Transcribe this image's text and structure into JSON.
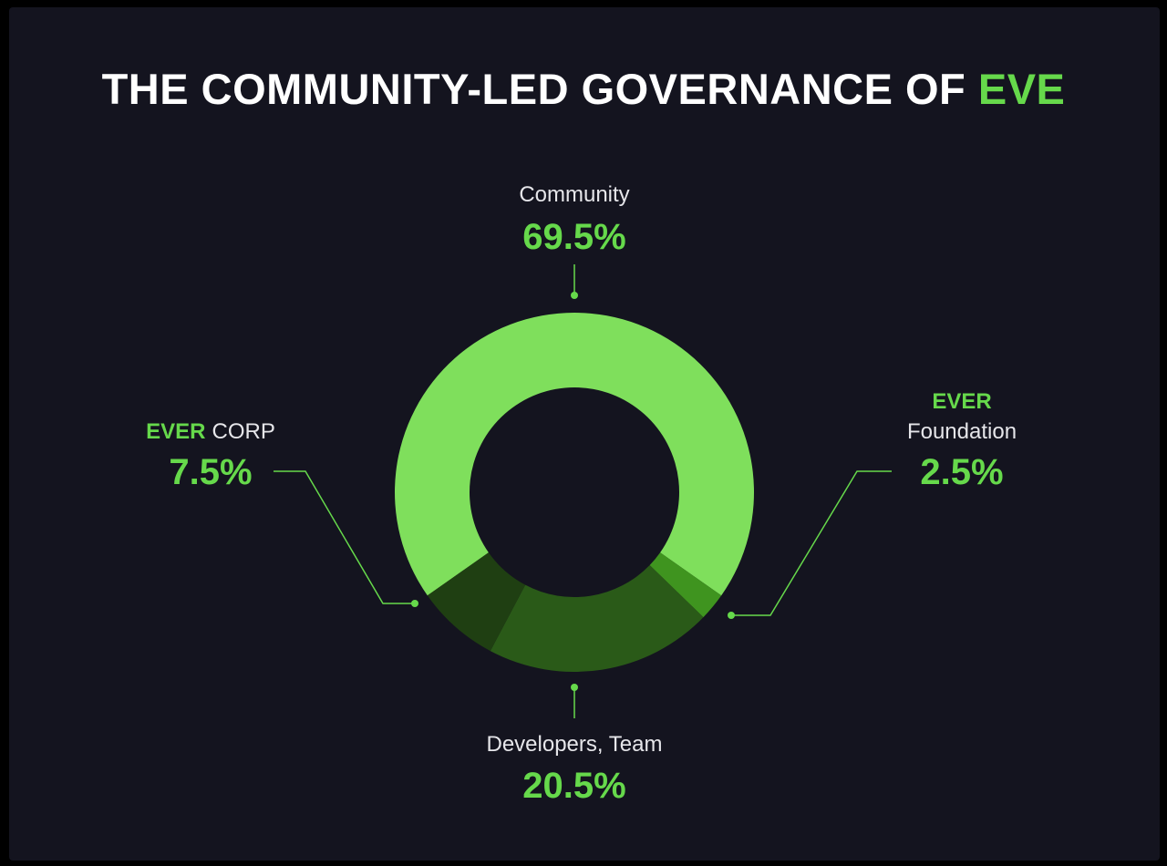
{
  "chart_data": {
    "type": "pie",
    "title": "THE COMMUNITY-LED GOVERNANCE OF",
    "title_accent": "EVE",
    "categories": [
      "Community",
      "EVER Foundation",
      "Developers, Team",
      "EVER CORP"
    ],
    "values": [
      69.5,
      2.5,
      20.5,
      7.5
    ],
    "colors": [
      "#7fdf5c",
      "#3f941f",
      "#2a5a18",
      "#1f3f12"
    ],
    "value_labels": [
      "69.5%",
      "2.5%",
      "20.5%",
      "7.5%"
    ],
    "labels": {
      "community": {
        "text": "Community"
      },
      "foundation": {
        "accent": "EVER",
        "text": "Foundation"
      },
      "developers": {
        "text": "Developers, Team"
      },
      "corp": {
        "accent": "EVER",
        "text": "CORP"
      }
    },
    "accent_color": "#66d94b",
    "legend": "none"
  }
}
